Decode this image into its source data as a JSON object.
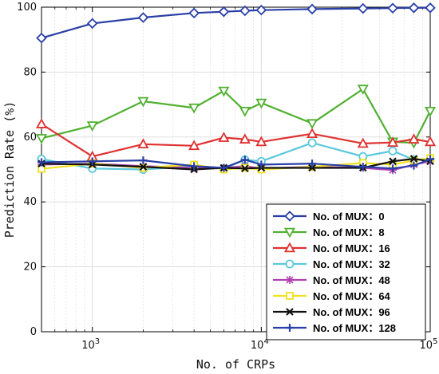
{
  "chart_data": {
    "type": "line",
    "xlabel": "No. of CRPs",
    "ylabel": "Prediction Rate (%)",
    "xscale": "log",
    "xlim": [
      500,
      100000
    ],
    "ylim": [
      0,
      100
    ],
    "grid": true,
    "legend_position": "bottom-right",
    "x_ticks": [
      {
        "value": 1000,
        "base": "10",
        "exp": "3"
      },
      {
        "value": 10000,
        "base": "10",
        "exp": "4"
      },
      {
        "value": 100000,
        "base": "10",
        "exp": "5"
      }
    ],
    "y_ticks": [
      {
        "value": 0,
        "label": "0"
      },
      {
        "value": 20,
        "label": "20"
      },
      {
        "value": 40,
        "label": "40"
      },
      {
        "value": 60,
        "label": "60"
      },
      {
        "value": 80,
        "label": "80"
      },
      {
        "value": 100,
        "label": "100"
      }
    ],
    "series": [
      {
        "name": "No. of MUX：0",
        "color": "#2a3fa8",
        "marker": "diamond",
        "points": [
          [
            500,
            90.5
          ],
          [
            1000,
            95
          ],
          [
            2000,
            96.8
          ],
          [
            4000,
            98.2
          ],
          [
            6000,
            98.6
          ],
          [
            8000,
            98.9
          ],
          [
            10000,
            99.1
          ],
          [
            20000,
            99.4
          ],
          [
            40000,
            99.6
          ],
          [
            60000,
            99.7
          ],
          [
            80000,
            99.8
          ],
          [
            100000,
            99.8
          ]
        ]
      },
      {
        "name": "No. of MUX：8",
        "color": "#50b030",
        "marker": "triangle-down",
        "points": [
          [
            500,
            59.6
          ],
          [
            1000,
            63.5
          ],
          [
            2000,
            71
          ],
          [
            4000,
            69
          ],
          [
            6000,
            74.2
          ],
          [
            8000,
            68
          ],
          [
            10000,
            70.5
          ],
          [
            20000,
            64.2
          ],
          [
            40000,
            74.8
          ],
          [
            60000,
            58.5
          ],
          [
            80000,
            58.2
          ],
          [
            100000,
            68
          ]
        ]
      },
      {
        "name": "No. of MUX：16",
        "color": "#e03030",
        "marker": "triangle-up",
        "points": [
          [
            500,
            64
          ],
          [
            1000,
            54
          ],
          [
            2000,
            57.8
          ],
          [
            4000,
            57.3
          ],
          [
            6000,
            59.8
          ],
          [
            8000,
            59.3
          ],
          [
            10000,
            58.5
          ],
          [
            20000,
            61
          ],
          [
            40000,
            58
          ],
          [
            60000,
            58.3
          ],
          [
            80000,
            59.3
          ],
          [
            100000,
            58.5
          ]
        ]
      },
      {
        "name": "No. of MUX：32",
        "color": "#5ac8dc",
        "marker": "circle",
        "points": [
          [
            500,
            53.2
          ],
          [
            1000,
            50.3
          ],
          [
            2000,
            50
          ],
          [
            4000,
            51
          ],
          [
            6000,
            50.2
          ],
          [
            8000,
            53
          ],
          [
            10000,
            52.5
          ],
          [
            20000,
            58.2
          ],
          [
            40000,
            54
          ],
          [
            60000,
            55.7
          ],
          [
            80000,
            53
          ],
          [
            100000,
            53.2
          ]
        ]
      },
      {
        "name": "No. of MUX：48",
        "color": "#b040b0",
        "marker": "star",
        "points": [
          [
            500,
            51.5
          ],
          [
            1000,
            51.8
          ],
          [
            2000,
            51
          ],
          [
            4000,
            50.5
          ],
          [
            6000,
            50.5
          ],
          [
            8000,
            51
          ],
          [
            10000,
            50.3
          ],
          [
            20000,
            50.8
          ],
          [
            40000,
            50.5
          ],
          [
            60000,
            49.8
          ],
          [
            80000,
            51.5
          ],
          [
            100000,
            52.5
          ]
        ]
      },
      {
        "name": "No. of MUX：64",
        "color": "#f0e020",
        "marker": "square",
        "points": [
          [
            500,
            50.2
          ],
          [
            1000,
            51.8
          ],
          [
            2000,
            50.5
          ],
          [
            4000,
            51.5
          ],
          [
            6000,
            50
          ],
          [
            8000,
            50.5
          ],
          [
            10000,
            50
          ],
          [
            20000,
            50.8
          ],
          [
            40000,
            52
          ],
          [
            60000,
            51.5
          ],
          [
            80000,
            52.8
          ],
          [
            100000,
            53.5
          ]
        ]
      },
      {
        "name": "No. of MUX：96",
        "color": "#111111",
        "marker": "x",
        "points": [
          [
            500,
            51.8
          ],
          [
            1000,
            51.5
          ],
          [
            2000,
            50.8
          ],
          [
            4000,
            50
          ],
          [
            6000,
            50.5
          ],
          [
            8000,
            50.3
          ],
          [
            10000,
            50.5
          ],
          [
            20000,
            50.5
          ],
          [
            40000,
            50.5
          ],
          [
            60000,
            52.5
          ],
          [
            80000,
            53.3
          ],
          [
            100000,
            52.5
          ]
        ]
      },
      {
        "name": "No. of MUX：128",
        "color": "#2a3fa8",
        "marker": "plus",
        "points": [
          [
            500,
            52.2
          ],
          [
            1000,
            52.5
          ],
          [
            2000,
            52.8
          ],
          [
            4000,
            51
          ],
          [
            6000,
            50.5
          ],
          [
            8000,
            53
          ],
          [
            10000,
            51.5
          ],
          [
            20000,
            51.8
          ],
          [
            40000,
            50.8
          ],
          [
            60000,
            50.3
          ],
          [
            80000,
            51.2
          ],
          [
            100000,
            53.2
          ]
        ]
      }
    ]
  }
}
